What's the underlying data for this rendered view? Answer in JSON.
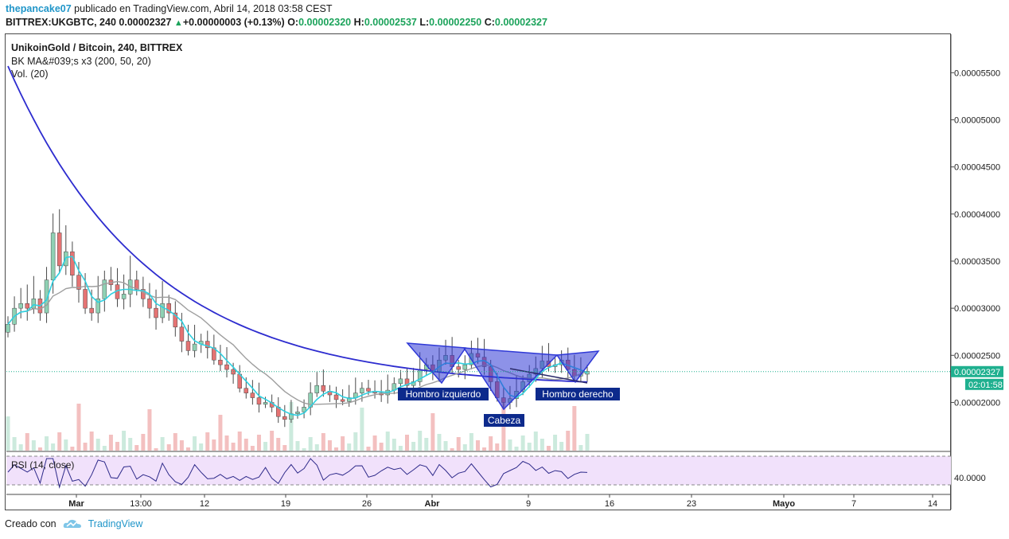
{
  "header": {
    "author": "thepancake07",
    "published": "publicado en TradingView.com, Abril 14, 2018 03:58 CEST",
    "symbol": "BITTREX:UKGBTC, 240",
    "last": "0.00002327",
    "change_icon": "triangle-up-icon",
    "change": "+0.00000003 (+0.13%)",
    "o_label": "O:",
    "o_value": "0.00002320",
    "h_label": "H:",
    "h_value": "0.00002537",
    "l_label": "L:",
    "l_value": "0.00002250",
    "c_label": "C:",
    "c_value": "0.00002327"
  },
  "legend": {
    "title": "UnikoinGold / Bitcoin, 240, BITTREX",
    "ma": "BK MA&#039;s x3 (200, 50, 20)",
    "vol": "Vol. (20)"
  },
  "rsi_label": "RSI (14, close)",
  "footer": {
    "created_with": "Creado con",
    "logo_icon": "tradingview-cloud-icon",
    "brand": "TradingView"
  },
  "colors": {
    "up": "#8fd1b4",
    "down": "#e57373",
    "wick": "#4a4a4a",
    "ma200": "#2d2ccf",
    "ma50": "#9e9e9e",
    "ma20": "#2fd0e0",
    "pattern_fill": "#2f39d6",
    "rsi_line": "#2e2a8a",
    "rsi_band": "#f1e1fb",
    "price_tag": "#1fb08f",
    "label_bg": "#0d2a8c"
  },
  "chart_data": {
    "type": "candlestick",
    "y_axis_ticks": [
      "0.00002000",
      "0.00002500",
      "0.00003000",
      "0.00003500",
      "0.00004000",
      "0.00004500",
      "0.00005000",
      "0.00005500"
    ],
    "x_axis_ticks": [
      "Mar",
      "13:00",
      "12",
      "19",
      "26",
      "Abr",
      "9",
      "16",
      "23",
      "Mayo",
      "7",
      "14"
    ],
    "ylim": [
      1.48e-05,
      5.9e-05
    ],
    "current_price_label": "0.00002327",
    "countdown_label": "02:01:58",
    "rsi_axis_label": "40.0000",
    "annotations": [
      "Hombro izquierdo",
      "Cabeza",
      "Hombro derecho"
    ],
    "close_series": [
      2.83e-05,
      3e-05,
      3.05e-05,
      3e-05,
      3.1e-05,
      2.95e-05,
      3.3e-05,
      3.8e-05,
      3.45e-05,
      3.6e-05,
      3.35e-05,
      3.2e-05,
      3e-05,
      2.95e-05,
      3.1e-05,
      3.3e-05,
      3.25e-05,
      3.1e-05,
      3.15e-05,
      3.3e-05,
      3.2e-05,
      3.1e-05,
      3e-05,
      2.9e-05,
      3.05e-05,
      2.95e-05,
      2.8e-05,
      2.65e-05,
      2.55e-05,
      2.62e-05,
      2.65e-05,
      2.58e-05,
      2.45e-05,
      2.4e-05,
      2.35e-05,
      2.3e-05,
      2.15e-05,
      2.1e-05,
      2.05e-05,
      1.98e-05,
      2e-05,
      1.95e-05,
      1.85e-05,
      1.82e-05,
      1.88e-05,
      1.9e-05,
      1.95e-05,
      2.1e-05,
      2.18e-05,
      2.12e-05,
      2.08e-05,
      2.03e-05,
      2.01e-05,
      2.05e-05,
      2.1e-05,
      2.15e-05,
      2.12e-05,
      2.1e-05,
      2.08e-05,
      2.13e-05,
      2.2e-05,
      2.25e-05,
      2.18e-05,
      2.22e-05,
      2.35e-05,
      2.4e-05,
      2.32e-05,
      2.45e-05,
      2.5e-05,
      2.38e-05,
      2.35e-05,
      2.4e-05,
      2.52e-05,
      2.48e-05,
      2.38e-05,
      2.22e-05,
      2.05e-05,
      2e-05,
      2.04e-05,
      2.12e-05,
      2.22e-05,
      2.3e-05,
      2.36e-05,
      2.44e-05,
      2.38e-05,
      2.4e-05,
      2.45e-05,
      2.35e-05,
      2.28e-05,
      2.3e-05,
      2.33e-05
    ]
  }
}
